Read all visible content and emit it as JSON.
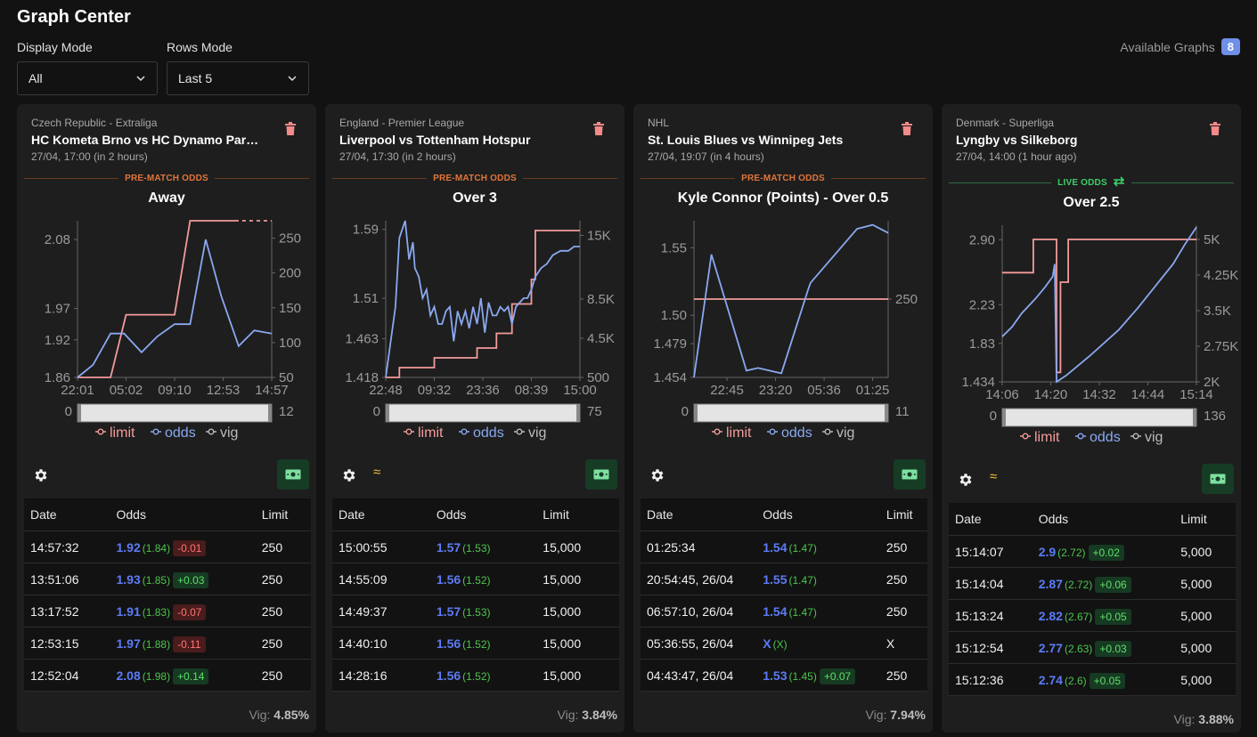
{
  "app": {
    "title": "Graph Center"
  },
  "controls": {
    "display_mode_label": "Display Mode",
    "display_mode_value": "All",
    "rows_mode_label": "Rows Mode",
    "rows_mode_value": "Last 5",
    "available_label": "Available Graphs",
    "available_count": "8"
  },
  "colors": {
    "limit": "#f49b9b",
    "odds": "#8aa8f0",
    "vig": "#bbbbbb",
    "prematch": "#e0763a",
    "live": "#3ecf6a"
  },
  "table_headers": {
    "date": "Date",
    "odds": "Odds",
    "limit": "Limit"
  },
  "cards": [
    {
      "league": "Czech Republic - Extraliga",
      "match": "HC Kometa Brno vs HC Dynamo Pardubice",
      "time": "27/04, 17:00 (in 2 hours)",
      "section": "PRE-MATCH ODDS",
      "market": "Away",
      "show_approx": false,
      "vig_label": "Vig:",
      "vig_value": "4.85%",
      "rows": [
        {
          "date": "14:57:32",
          "odds": "1.92",
          "no_vig": "(1.84)",
          "change": "-0.01",
          "limit": "250"
        },
        {
          "date": "13:51:06",
          "odds": "1.93",
          "no_vig": "(1.85)",
          "change": "+0.03",
          "limit": "250"
        },
        {
          "date": "13:17:52",
          "odds": "1.91",
          "no_vig": "(1.83)",
          "change": "-0.07",
          "limit": "250"
        },
        {
          "date": "12:53:15",
          "odds": "1.97",
          "no_vig": "(1.88)",
          "change": "-0.11",
          "limit": "250"
        },
        {
          "date": "12:52:04",
          "odds": "2.08",
          "no_vig": "(1.98)",
          "change": "+0.14",
          "limit": "250"
        }
      ]
    },
    {
      "league": "England - Premier League",
      "match": "Liverpool vs Tottenham Hotspur",
      "time": "27/04, 17:30 (in 2 hours)",
      "section": "PRE-MATCH ODDS",
      "market": "Over 3",
      "show_approx": true,
      "vig_label": "Vig:",
      "vig_value": "3.84%",
      "rows": [
        {
          "date": "15:00:55",
          "odds": "1.57",
          "no_vig": "(1.53)",
          "change": "",
          "limit": "15,000"
        },
        {
          "date": "14:55:09",
          "odds": "1.56",
          "no_vig": "(1.52)",
          "change": "",
          "limit": "15,000"
        },
        {
          "date": "14:49:37",
          "odds": "1.57",
          "no_vig": "(1.53)",
          "change": "",
          "limit": "15,000"
        },
        {
          "date": "14:40:10",
          "odds": "1.56",
          "no_vig": "(1.52)",
          "change": "",
          "limit": "15,000"
        },
        {
          "date": "14:28:16",
          "odds": "1.56",
          "no_vig": "(1.52)",
          "change": "",
          "limit": "15,000"
        }
      ]
    },
    {
      "league": "NHL",
      "match": "St. Louis Blues vs Winnipeg Jets",
      "time": "27/04, 19:07 (in 4 hours)",
      "section": "PRE-MATCH ODDS",
      "market": "Kyle Connor (Points) - Over 0.5",
      "show_approx": false,
      "vig_label": "Vig:",
      "vig_value": "7.94%",
      "rows": [
        {
          "date": "01:25:34",
          "odds": "1.54",
          "no_vig": "(1.47)",
          "change": "",
          "limit": "250"
        },
        {
          "date": "20:54:45, 26/04",
          "odds": "1.55",
          "no_vig": "(1.47)",
          "change": "",
          "limit": "250"
        },
        {
          "date": "06:57:10, 26/04",
          "odds": "1.54",
          "no_vig": "(1.47)",
          "change": "",
          "limit": "250"
        },
        {
          "date": "05:36:55, 26/04",
          "odds": "X",
          "no_vig": "(X)",
          "change": "",
          "limit": "X"
        },
        {
          "date": "04:43:47, 26/04",
          "odds": "1.53",
          "no_vig": "(1.45)",
          "change": "+0.07",
          "limit": "250"
        }
      ]
    },
    {
      "league": "Denmark - Superliga",
      "match": "Lyngby vs Silkeborg",
      "time": "27/04, 14:00 (1 hour ago)",
      "section": "LIVE ODDS",
      "market": "Over 2.5",
      "show_approx": true,
      "vig_label": "Vig:",
      "vig_value": "3.88%",
      "rows": [
        {
          "date": "15:14:07",
          "odds": "2.9",
          "no_vig": "(2.72)",
          "change": "+0.02",
          "limit": "5,000"
        },
        {
          "date": "15:14:04",
          "odds": "2.87",
          "no_vig": "(2.72)",
          "change": "+0.06",
          "limit": "5,000"
        },
        {
          "date": "15:13:24",
          "odds": "2.82",
          "no_vig": "(2.67)",
          "change": "+0.05",
          "limit": "5,000"
        },
        {
          "date": "15:12:54",
          "odds": "2.77",
          "no_vig": "(2.63)",
          "change": "+0.03",
          "limit": "5,000"
        },
        {
          "date": "15:12:36",
          "odds": "2.74",
          "no_vig": "(2.6)",
          "change": "+0.05",
          "limit": "5,000"
        }
      ]
    }
  ],
  "chart_data": [
    {
      "type": "line",
      "x_ticks": [
        "22:01",
        "05:02",
        "09:10",
        "12:53",
        "14:57"
      ],
      "y_left_ticks": [
        "2.08",
        "1.97",
        "1.92",
        "1.86"
      ],
      "y_left_lim": [
        1.86,
        2.11
      ],
      "y_right_ticks": [
        "250",
        "200",
        "150",
        "100",
        "50"
      ],
      "y_right_lim": [
        50,
        275
      ],
      "legend": [
        "limit",
        "odds",
        "vig"
      ],
      "vig_range": [
        "0",
        "12"
      ],
      "series": [
        {
          "name": "limit",
          "axis": "right",
          "points": [
            [
              0,
              50
            ],
            [
              0.17,
              50
            ],
            [
              0.25,
              140
            ],
            [
              0.5,
              140
            ],
            [
              0.58,
              275
            ],
            [
              1,
              275
            ]
          ],
          "dashed_from": 0.83
        },
        {
          "name": "odds",
          "axis": "left",
          "points": [
            [
              0,
              1.86
            ],
            [
              0.08,
              1.88
            ],
            [
              0.17,
              1.93
            ],
            [
              0.24,
              1.93
            ],
            [
              0.33,
              1.9
            ],
            [
              0.41,
              1.925
            ],
            [
              0.5,
              1.945
            ],
            [
              0.58,
              1.945
            ],
            [
              0.66,
              2.08
            ],
            [
              0.74,
              1.99
            ],
            [
              0.83,
              1.91
            ],
            [
              0.91,
              1.935
            ],
            [
              1,
              1.93
            ]
          ]
        }
      ]
    },
    {
      "type": "line",
      "x_ticks": [
        "22:48",
        "09:32",
        "23:36",
        "08:39",
        "15:00"
      ],
      "y_left_ticks": [
        "1.59",
        "1.51",
        "1.463",
        "1.418"
      ],
      "y_left_lim": [
        1.418,
        1.6
      ],
      "y_right_ticks": [
        "15K",
        "8.5K",
        "4.5K",
        "500"
      ],
      "y_right_lim": [
        500,
        16500
      ],
      "legend": [
        "limit",
        "odds",
        "vig"
      ],
      "vig_range": [
        "0",
        "75"
      ],
      "series": [
        {
          "name": "limit",
          "axis": "right",
          "points": [
            [
              0,
              500
            ],
            [
              0.07,
              500
            ],
            [
              0.07,
              1500
            ],
            [
              0.25,
              1500
            ],
            [
              0.25,
              2500
            ],
            [
              0.47,
              2500
            ],
            [
              0.47,
              3500
            ],
            [
              0.57,
              3500
            ],
            [
              0.57,
              5000
            ],
            [
              0.65,
              5000
            ],
            [
              0.65,
              8000
            ],
            [
              0.75,
              8000
            ],
            [
              0.75,
              10500
            ],
            [
              0.77,
              10500
            ],
            [
              0.77,
              15500
            ],
            [
              1,
              15500
            ]
          ]
        },
        {
          "name": "odds",
          "axis": "left",
          "points": [
            [
              0,
              1.418
            ],
            [
              0.05,
              1.5
            ],
            [
              0.07,
              1.58
            ],
            [
              0.1,
              1.6
            ],
            [
              0.12,
              1.555
            ],
            [
              0.14,
              1.575
            ],
            [
              0.15,
              1.545
            ],
            [
              0.17,
              1.535
            ],
            [
              0.19,
              1.51
            ],
            [
              0.21,
              1.52
            ],
            [
              0.23,
              1.49
            ],
            [
              0.25,
              1.5
            ],
            [
              0.27,
              1.48
            ],
            [
              0.29,
              1.48
            ],
            [
              0.31,
              1.495
            ],
            [
              0.33,
              1.5
            ],
            [
              0.35,
              1.46
            ],
            [
              0.37,
              1.495
            ],
            [
              0.39,
              1.48
            ],
            [
              0.41,
              1.495
            ],
            [
              0.43,
              1.475
            ],
            [
              0.45,
              1.5
            ],
            [
              0.47,
              1.48
            ],
            [
              0.49,
              1.51
            ],
            [
              0.51,
              1.47
            ],
            [
              0.53,
              1.505
            ],
            [
              0.55,
              1.49
            ],
            [
              0.57,
              1.49
            ],
            [
              0.59,
              1.5
            ],
            [
              0.61,
              1.495
            ],
            [
              0.63,
              1.5
            ],
            [
              0.65,
              1.48
            ],
            [
              0.67,
              1.5
            ],
            [
              0.69,
              1.505
            ],
            [
              0.71,
              1.51
            ],
            [
              0.73,
              1.51
            ],
            [
              0.75,
              1.52
            ],
            [
              0.77,
              1.535
            ],
            [
              0.8,
              1.545
            ],
            [
              0.83,
              1.55
            ],
            [
              0.86,
              1.56
            ],
            [
              0.9,
              1.565
            ],
            [
              0.94,
              1.565
            ],
            [
              0.97,
              1.57
            ],
            [
              1,
              1.57
            ]
          ]
        }
      ]
    },
    {
      "type": "line",
      "x_ticks": [
        "22:45",
        "23:20",
        "05:36",
        "01:25"
      ],
      "y_left_ticks": [
        "1.55",
        "1.50",
        "1.479",
        "1.454"
      ],
      "y_left_lim": [
        1.454,
        1.57
      ],
      "y_right_ticks": [
        "250"
      ],
      "y_right_lim": [
        0,
        500
      ],
      "legend": [
        "limit",
        "odds",
        "vig"
      ],
      "vig_range": [
        "0",
        "11"
      ],
      "series": [
        {
          "name": "limit",
          "axis": "right",
          "points": [
            [
              0,
              250
            ],
            [
              1,
              250
            ]
          ],
          "dashed_ranges": [
            [
              0.09,
              0.41
            ],
            [
              0.45,
              0.82
            ]
          ]
        },
        {
          "name": "odds",
          "axis": "left",
          "points": [
            [
              0,
              1.454
            ],
            [
              0.09,
              1.545
            ],
            [
              0.27,
              1.459
            ],
            [
              0.33,
              1.461
            ],
            [
              0.45,
              1.457
            ],
            [
              0.59,
              1.52
            ],
            [
              0.6,
              1.524
            ],
            [
              0.84,
              1.564
            ],
            [
              0.92,
              1.567
            ],
            [
              1,
              1.561
            ]
          ],
          "dashed_ranges": [
            [
              0.09,
              0.27
            ],
            [
              0.6,
              0.84
            ]
          ]
        }
      ]
    },
    {
      "type": "line",
      "x_ticks": [
        "14:06",
        "14:20",
        "14:32",
        "14:44",
        "15:14"
      ],
      "y_left_ticks": [
        "2.90",
        "2.23",
        "1.83",
        "1.434"
      ],
      "y_left_lim": [
        1.434,
        3.05
      ],
      "y_right_ticks": [
        "5K",
        "4.25K",
        "3.5K",
        "2.75K",
        "2K"
      ],
      "y_right_lim": [
        2000,
        5300
      ],
      "legend": [
        "limit",
        "odds",
        "vig"
      ],
      "vig_range": [
        "0",
        "136"
      ],
      "series": [
        {
          "name": "limit",
          "axis": "right",
          "points": [
            [
              0,
              4300
            ],
            [
              0.16,
              4300
            ],
            [
              0.16,
              5000
            ],
            [
              0.28,
              5000
            ],
            [
              0.28,
              2200
            ],
            [
              0.3,
              2200
            ],
            [
              0.3,
              4100
            ],
            [
              0.34,
              4100
            ],
            [
              0.34,
              5000
            ],
            [
              0.38,
              5000
            ],
            [
              0.38,
              5000
            ],
            [
              1,
              5000
            ]
          ]
        },
        {
          "name": "odds",
          "axis": "left",
          "points": [
            [
              0,
              1.9
            ],
            [
              0.05,
              2.0
            ],
            [
              0.1,
              2.14
            ],
            [
              0.17,
              2.29
            ],
            [
              0.22,
              2.41
            ],
            [
              0.26,
              2.52
            ],
            [
              0.27,
              2.65
            ],
            [
              0.28,
              1.434
            ],
            [
              0.33,
              1.5
            ],
            [
              0.45,
              1.7
            ],
            [
              0.6,
              1.97
            ],
            [
              0.7,
              2.2
            ],
            [
              0.8,
              2.45
            ],
            [
              0.88,
              2.65
            ],
            [
              0.94,
              2.85
            ],
            [
              1,
              3.03
            ]
          ],
          "dashed_ranges": [
            [
              0.27,
              0.28
            ]
          ]
        }
      ]
    }
  ]
}
